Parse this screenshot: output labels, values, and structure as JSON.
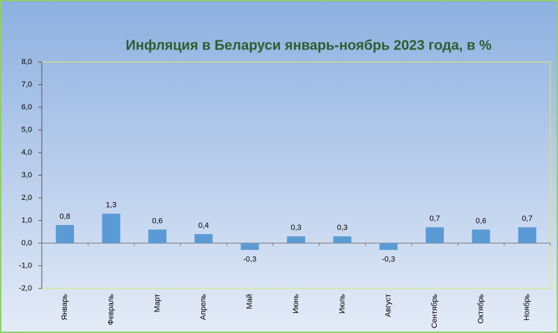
{
  "chart_data": {
    "type": "bar",
    "title": "Инфляция в Беларуси январь-ноябрь 2023 года, в %",
    "categories": [
      "Январь",
      "Февраль",
      "Март",
      "Апрель",
      "Май",
      "Июнь",
      "Июль",
      "Август",
      "Сентябрь",
      "Октябрь",
      "Ноябрь"
    ],
    "values": [
      0.8,
      1.3,
      0.6,
      0.4,
      -0.3,
      0.3,
      0.3,
      -0.3,
      0.7,
      0.6,
      0.7
    ],
    "value_labels": [
      "0,8",
      "1,3",
      "0,6",
      "0,4",
      "-0,3",
      "0,3",
      "0,3",
      "-0,3",
      "0,7",
      "0,6",
      "0,7"
    ],
    "color": "#5b9bd5",
    "ylim": [
      -2,
      8
    ],
    "yticks": [
      {
        "value": -2,
        "label": "-2,0"
      },
      {
        "value": -1,
        "label": "-1,0"
      },
      {
        "value": 0,
        "label": "0,0"
      },
      {
        "value": 1,
        "label": "1,0"
      },
      {
        "value": 2,
        "label": "2,0"
      },
      {
        "value": 3,
        "label": "3,0"
      },
      {
        "value": 4,
        "label": "4,0"
      },
      {
        "value": 5,
        "label": "5,0"
      },
      {
        "value": 6,
        "label": "6,0"
      },
      {
        "value": 7,
        "label": "7,0"
      },
      {
        "value": 8,
        "label": "8,0"
      }
    ],
    "grid": false
  }
}
